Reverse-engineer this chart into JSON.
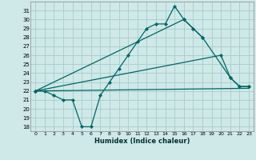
{
  "title": "",
  "xlabel": "Humidex (Indice chaleur)",
  "background_color": "#cfe8e8",
  "grid_color": "#a8cccc",
  "line_color": "#006666",
  "xlim": [
    -0.5,
    23.5
  ],
  "ylim": [
    17.5,
    32
  ],
  "xticks": [
    0,
    1,
    2,
    3,
    4,
    5,
    6,
    7,
    8,
    9,
    10,
    11,
    12,
    13,
    14,
    15,
    16,
    17,
    18,
    19,
    20,
    21,
    22,
    23
  ],
  "yticks": [
    18,
    19,
    20,
    21,
    22,
    23,
    24,
    25,
    26,
    27,
    28,
    29,
    30,
    31
  ],
  "curve1_x": [
    0,
    1,
    2,
    3,
    4,
    5,
    6,
    7,
    8,
    9,
    10,
    11,
    12,
    13,
    14,
    15,
    16,
    17,
    18
  ],
  "curve1_y": [
    22,
    22,
    21.5,
    21,
    21,
    18,
    18,
    21.5,
    23,
    24.5,
    26,
    27.5,
    29,
    29.5,
    29.5,
    31.5,
    30,
    29,
    28
  ],
  "curve2_x": [
    0,
    16,
    17,
    18,
    21,
    22,
    23
  ],
  "curve2_y": [
    22,
    30,
    29,
    28,
    23.5,
    22.5,
    22.5
  ],
  "curve3_x": [
    0,
    20,
    21,
    22,
    23
  ],
  "curve3_y": [
    22,
    26,
    23.5,
    22.5,
    22.5
  ],
  "curve4_x": [
    0,
    23
  ],
  "curve4_y": [
    22,
    22.3
  ]
}
